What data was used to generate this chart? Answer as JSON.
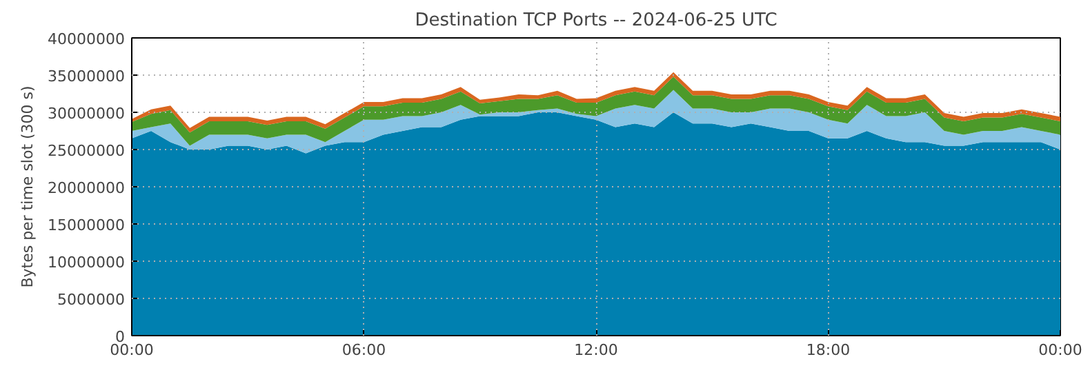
{
  "chart_data": {
    "type": "area",
    "stacked": true,
    "title": "Destination TCP Ports -- 2024-06-25 UTC",
    "ylabel": "Bytes per time slot (300 s)",
    "x": [
      0,
      0.5,
      1,
      1.5,
      2,
      2.5,
      3,
      3.5,
      4,
      4.5,
      5,
      5.5,
      6,
      6.5,
      7,
      7.5,
      8,
      8.5,
      9,
      9.5,
      10,
      10.5,
      11,
      11.5,
      12,
      12.5,
      13,
      13.5,
      14,
      14.5,
      15,
      15.5,
      16,
      16.5,
      17,
      17.5,
      18,
      18.5,
      19,
      19.5,
      20,
      20.5,
      21,
      21.5,
      22,
      22.5,
      23,
      23.5,
      24
    ],
    "series": [
      {
        "color": "#0080b0",
        "values": [
          26500000,
          27500000,
          26000000,
          25000000,
          25000000,
          25500000,
          25500000,
          25000000,
          25500000,
          24500000,
          25500000,
          26000000,
          26000000,
          27000000,
          27500000,
          28000000,
          28000000,
          29000000,
          29500000,
          29500000,
          29500000,
          30000000,
          30000000,
          29500000,
          29000000,
          28000000,
          28500000,
          28000000,
          30000000,
          28500000,
          28500000,
          28000000,
          28500000,
          28000000,
          27500000,
          27500000,
          26500000,
          26500000,
          27500000,
          26500000,
          26000000,
          26000000,
          25500000,
          25500000,
          26000000,
          26000000,
          26000000,
          26000000,
          25000000
        ]
      },
      {
        "color": "#88c4e4",
        "values": [
          1000000,
          500000,
          2500000,
          500000,
          2000000,
          1500000,
          1500000,
          1500000,
          1500000,
          2500000,
          500000,
          1500000,
          3000000,
          2000000,
          2000000,
          1500000,
          2000000,
          2000000,
          200000,
          500000,
          500000,
          300000,
          500000,
          300000,
          500000,
          2500000,
          2500000,
          2500000,
          3000000,
          2000000,
          2000000,
          2000000,
          1500000,
          2500000,
          3000000,
          2500000,
          2500000,
          2000000,
          3500000,
          3000000,
          3500000,
          4000000,
          2000000,
          1500000,
          1500000,
          1500000,
          2000000,
          1500000,
          2000000
        ]
      },
      {
        "color": "#4c9a2a",
        "values": [
          1200000,
          1800000,
          1800000,
          1800000,
          1800000,
          1800000,
          1800000,
          1800000,
          1800000,
          1800000,
          1800000,
          1800000,
          1800000,
          1800000,
          1800000,
          1800000,
          1800000,
          1800000,
          1500000,
          1500000,
          1800000,
          1500000,
          1800000,
          1500000,
          1800000,
          1800000,
          1800000,
          1800000,
          1800000,
          1800000,
          1800000,
          1800000,
          1800000,
          1800000,
          1800000,
          1800000,
          1800000,
          1800000,
          1800000,
          1800000,
          1800000,
          1800000,
          1800000,
          1800000,
          1800000,
          1800000,
          1800000,
          1800000,
          1800000
        ]
      },
      {
        "color": "#d9661f",
        "values": [
          400000,
          600000,
          600000,
          600000,
          600000,
          600000,
          600000,
          600000,
          600000,
          600000,
          600000,
          600000,
          600000,
          600000,
          600000,
          600000,
          600000,
          600000,
          500000,
          500000,
          600000,
          500000,
          600000,
          500000,
          600000,
          600000,
          600000,
          600000,
          600000,
          600000,
          600000,
          600000,
          600000,
          600000,
          600000,
          600000,
          600000,
          600000,
          600000,
          600000,
          600000,
          600000,
          600000,
          600000,
          600000,
          600000,
          600000,
          600000,
          600000
        ]
      }
    ],
    "xlim": [
      0,
      24
    ],
    "xticks": [
      {
        "value": 0,
        "label": "00:00"
      },
      {
        "value": 6,
        "label": "06:00"
      },
      {
        "value": 12,
        "label": "12:00"
      },
      {
        "value": 18,
        "label": "18:00"
      },
      {
        "value": 24,
        "label": "00:00"
      }
    ],
    "ylim": [
      0,
      40000000
    ],
    "yticks": [
      0,
      5000000,
      10000000,
      15000000,
      20000000,
      25000000,
      30000000,
      35000000,
      40000000
    ],
    "grid": true
  }
}
